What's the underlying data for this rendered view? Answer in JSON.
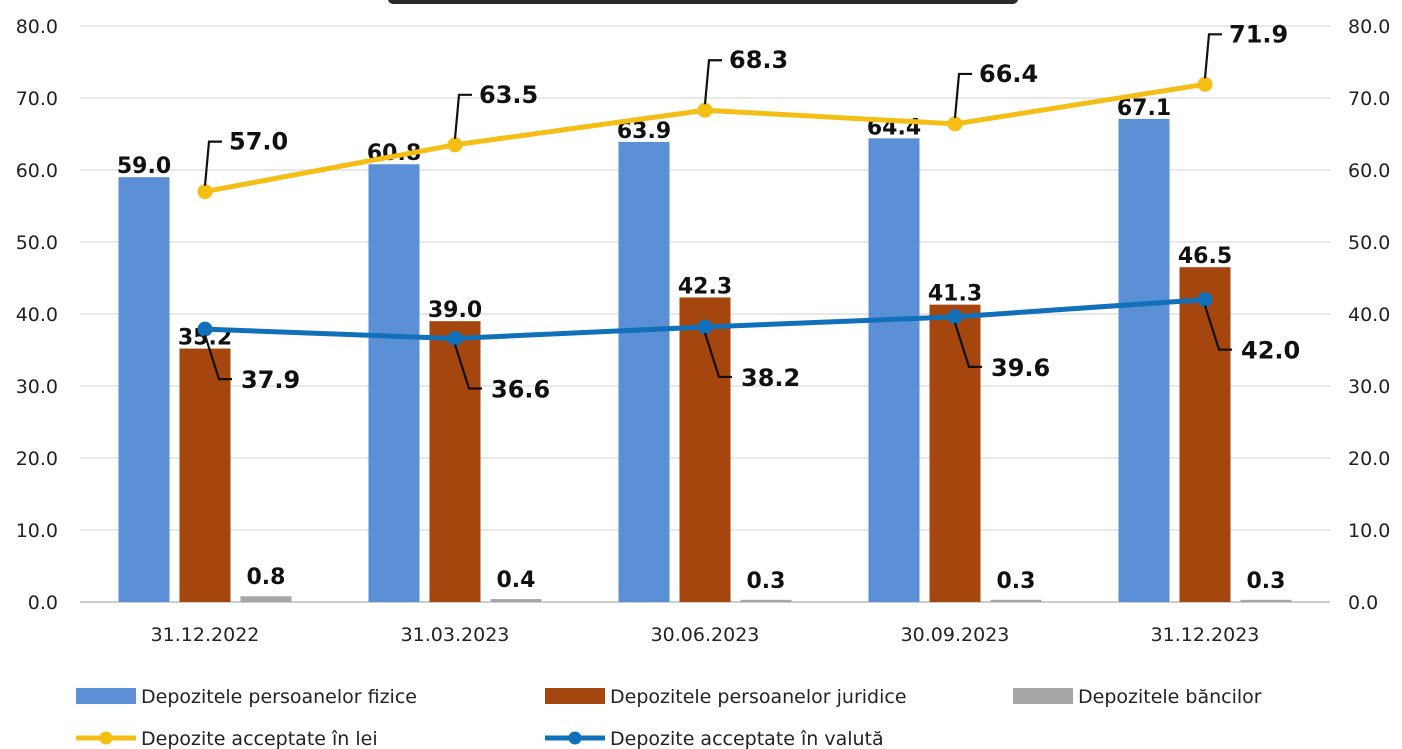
{
  "chart_data": {
    "type": "bar",
    "categories": [
      "31.12.2022",
      "31.03.2023",
      "30.06.2023",
      "30.09.2023",
      "31.12.2023"
    ],
    "ylim": [
      0,
      80
    ],
    "y_ticks": [
      "0.0",
      "10.0",
      "20.0",
      "30.0",
      "40.0",
      "50.0",
      "60.0",
      "70.0",
      "80.0"
    ],
    "y2lim": [
      0,
      80
    ],
    "y2_ticks": [
      "0.0",
      "10.0",
      "20.0",
      "30.0",
      "40.0",
      "50.0",
      "60.0",
      "70.0",
      "80.0"
    ],
    "grid": true,
    "legend_position": "bottom",
    "bar_series": [
      {
        "name": "Depozitele persoanelor fizice",
        "color": "#5B8FD6",
        "values": [
          59.0,
          60.8,
          63.9,
          64.4,
          67.1
        ],
        "labels": [
          "59.0",
          "60.8",
          "63.9",
          "64.4",
          "67.1"
        ]
      },
      {
        "name": "Depozitele persoanelor juridice",
        "color": "#A5460F",
        "values": [
          35.2,
          39.0,
          42.3,
          41.3,
          46.5
        ],
        "labels": [
          "35.2",
          "39.0",
          "42.3",
          "41.3",
          "46.5"
        ]
      },
      {
        "name": "Depozitele băncilor",
        "color": "#A6A6A6",
        "values": [
          0.8,
          0.4,
          0.3,
          0.3,
          0.3
        ],
        "labels": [
          "0.8",
          "0.4",
          "0.3",
          "0.3",
          "0.3"
        ]
      }
    ],
    "line_series": [
      {
        "name": "Depozite acceptate în lei",
        "color": "#F5BE15",
        "values": [
          57.0,
          63.5,
          68.3,
          66.4,
          71.9
        ],
        "labels": [
          "57.0",
          "63.5",
          "68.3",
          "66.4",
          "71.9"
        ],
        "label_side": "above"
      },
      {
        "name": "Depozite acceptate în valută",
        "color": "#1170BA",
        "values": [
          37.9,
          36.6,
          38.2,
          39.6,
          42.0
        ],
        "labels": [
          "37.9",
          "36.6",
          "38.2",
          "39.6",
          "42.0"
        ],
        "label_side": "below"
      }
    ]
  }
}
